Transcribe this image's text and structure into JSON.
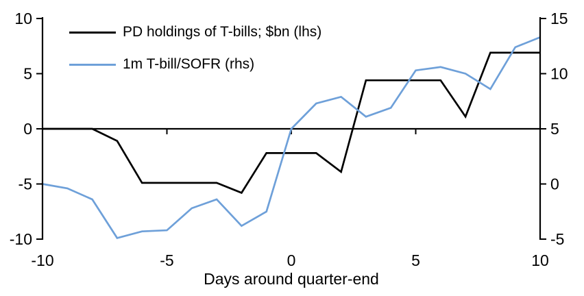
{
  "chart_data": {
    "type": "line",
    "title": "",
    "xlabel": "Days around quarter-end",
    "grid": false,
    "legend_position": "top-left-inside",
    "x": [
      -10,
      -9,
      -8,
      -7,
      -6,
      -5,
      -4,
      -3,
      -2,
      -1,
      0,
      1,
      2,
      3,
      4,
      5,
      6,
      7,
      8,
      9,
      10
    ],
    "x_ticks": [
      -10,
      -5,
      0,
      5,
      10
    ],
    "left_axis": {
      "min": -10,
      "max": 10,
      "ticks": [
        10,
        5,
        0,
        -5,
        -10
      ]
    },
    "right_axis": {
      "min": -5,
      "max": 15,
      "ticks": [
        15,
        10,
        5,
        0,
        -5
      ]
    },
    "series": [
      {
        "name": "PD holdings of T-bills; $bn (lhs)",
        "axis": "left",
        "color": "#000000",
        "values": [
          0,
          0,
          0,
          -1.1,
          -4.9,
          -4.9,
          -4.9,
          -4.9,
          -5.8,
          -2.2,
          -2.2,
          -2.2,
          -3.9,
          4.4,
          4.4,
          4.4,
          4.4,
          1.1,
          6.9,
          6.9,
          6.9
        ]
      },
      {
        "name": "1m T-bill/SOFR (rhs)",
        "axis": "right",
        "color": "#6EA0D9",
        "values": [
          0,
          -0.4,
          -1.4,
          -4.9,
          -4.3,
          -4.2,
          -2.2,
          -1.4,
          -3.8,
          -2.5,
          5.0,
          7.3,
          7.9,
          6.1,
          6.9,
          10.3,
          10.6,
          10.0,
          8.6,
          12.4,
          13.3
        ]
      }
    ]
  }
}
